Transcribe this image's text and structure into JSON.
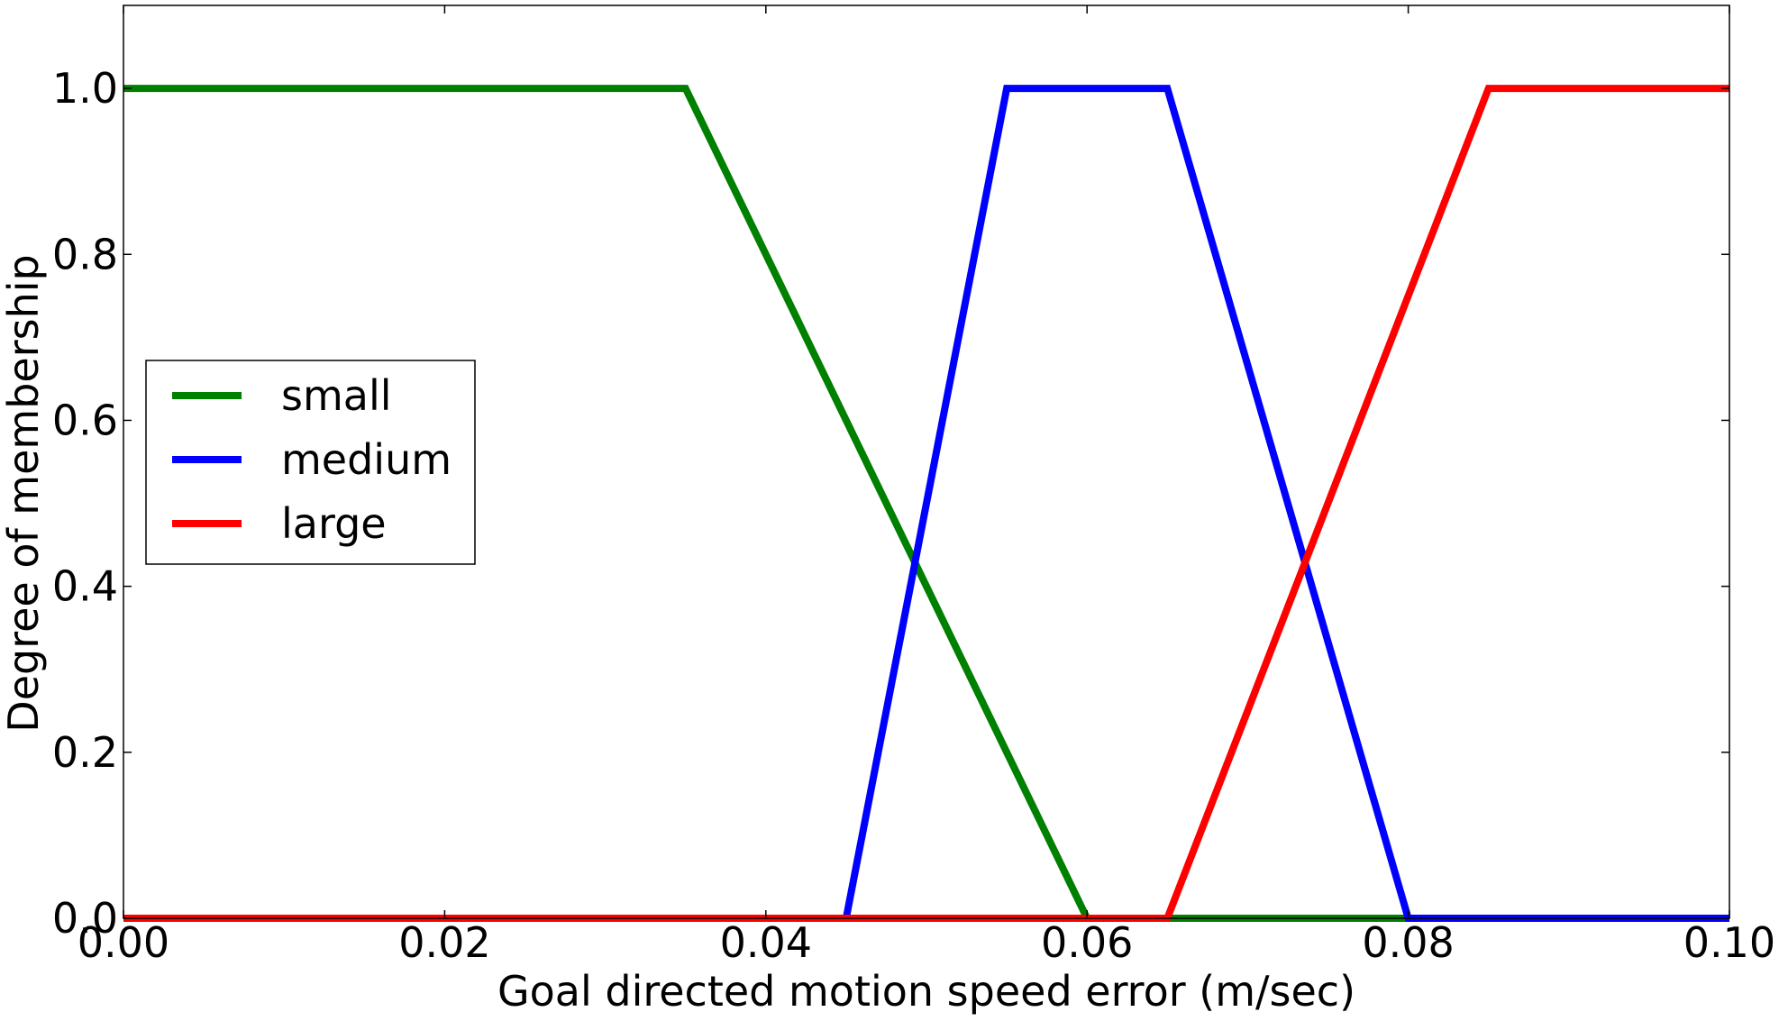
{
  "chart_data": {
    "type": "line",
    "title": "",
    "xlabel": "Goal directed motion speed error (m/sec)",
    "ylabel": "Degree of membership",
    "xlim": [
      0.0,
      0.1
    ],
    "ylim": [
      0.0,
      1.1
    ],
    "x_ticks": [
      "0.00",
      "0.02",
      "0.04",
      "0.06",
      "0.08",
      "0.10"
    ],
    "x_tick_values": [
      0.0,
      0.02,
      0.04,
      0.06,
      0.08,
      0.1
    ],
    "y_ticks": [
      "0.0",
      "0.2",
      "0.4",
      "0.6",
      "0.8",
      "1.0"
    ],
    "y_tick_values": [
      0.0,
      0.2,
      0.4,
      0.6,
      0.8,
      1.0
    ],
    "grid": false,
    "legend_position": "center-left",
    "series": [
      {
        "name": "small",
        "color": "#008000",
        "x": [
          0.0,
          0.035,
          0.06,
          0.1
        ],
        "y": [
          1.0,
          1.0,
          0.0,
          0.0
        ]
      },
      {
        "name": "medium",
        "color": "#0000ff",
        "x": [
          0.0,
          0.045,
          0.055,
          0.065,
          0.08,
          0.1
        ],
        "y": [
          0.0,
          0.0,
          1.0,
          1.0,
          0.0,
          0.0
        ]
      },
      {
        "name": "large",
        "color": "#ff0000",
        "x": [
          0.0,
          0.065,
          0.085,
          0.1
        ],
        "y": [
          0.0,
          0.0,
          1.0,
          1.0
        ]
      }
    ]
  }
}
